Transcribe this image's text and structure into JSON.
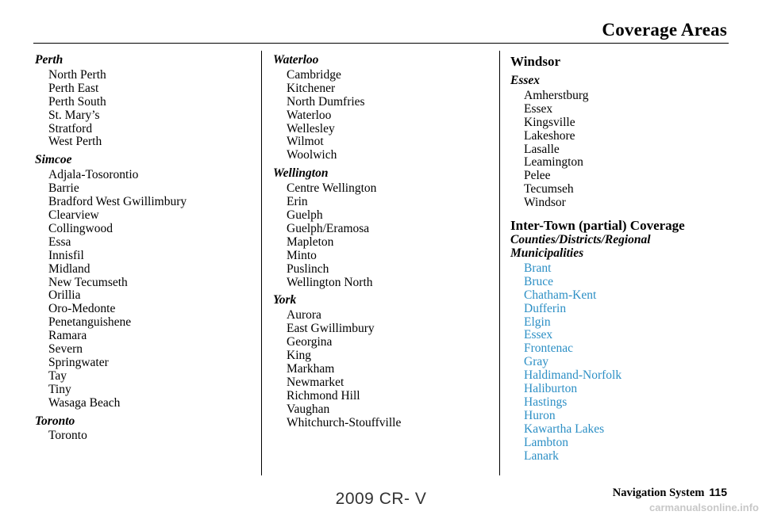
{
  "header": {
    "title": "Coverage Areas"
  },
  "columns": {
    "c1": {
      "groups": [
        {
          "name": "Perth",
          "items": [
            "North Perth",
            "Perth East",
            "Perth South",
            "St. Mary’s",
            "Stratford",
            "West Perth"
          ]
        },
        {
          "name": "Simcoe",
          "items": [
            "Adjala-Tosorontio",
            "Barrie",
            "Bradford West Gwillimbury",
            "Clearview",
            "Collingwood",
            "Essa",
            "Innisfil",
            "Midland",
            "New Tecumseth",
            "Orillia",
            "Oro-Medonte",
            "Penetanguishene",
            "Ramara",
            "Severn",
            "Springwater",
            "Tay",
            "Tiny",
            "Wasaga Beach"
          ]
        },
        {
          "name": "Toronto",
          "items": [
            "Toronto"
          ]
        }
      ]
    },
    "c2": {
      "groups": [
        {
          "name": "Waterloo",
          "items": [
            "Cambridge",
            "Kitchener",
            "North Dumfries",
            "Waterloo",
            "Wellesley",
            "Wilmot",
            "Woolwich"
          ]
        },
        {
          "name": "Wellington",
          "items": [
            "Centre Wellington",
            "Erin",
            "Guelph",
            "Guelph/Eramosa",
            "Mapleton",
            "Minto",
            "Puslinch",
            "Wellington North"
          ]
        },
        {
          "name": "York",
          "items": [
            "Aurora",
            "East Gwillimbury",
            "Georgina",
            "King",
            "Markham",
            "Newmarket",
            "Richmond Hill",
            "Vaughan",
            "Whitchurch-Stouffville"
          ]
        }
      ]
    },
    "c3": {
      "section1_title": "Windsor",
      "group_name": "Essex",
      "group_items": [
        "Amherstburg",
        "Essex",
        "Kingsville",
        "Lakeshore",
        "Lasalle",
        "Leamington",
        "Pelee",
        "Tecumseh",
        "Windsor"
      ],
      "section2_title": "Inter-Town (partial) Coverage",
      "section2_sub1": "Counties/Districts/Regional",
      "section2_sub2": "Municipalities",
      "links": [
        "Brant",
        "Bruce",
        "Chatham-Kent",
        "Dufferin",
        "Elgin",
        "Essex",
        "Frontenac",
        "Gray",
        "Haldimand-Norfolk",
        "Haliburton",
        "Hastings",
        "Huron",
        "Kawartha Lakes",
        "Lambton",
        "Lanark"
      ]
    }
  },
  "footer": {
    "nav_label": "Navigation System",
    "page_number": "115",
    "watermark": "2009  CR- V",
    "site": "carmanualsonline.info"
  },
  "colors": {
    "link": "#2c8fc5",
    "text": "#000000"
  }
}
